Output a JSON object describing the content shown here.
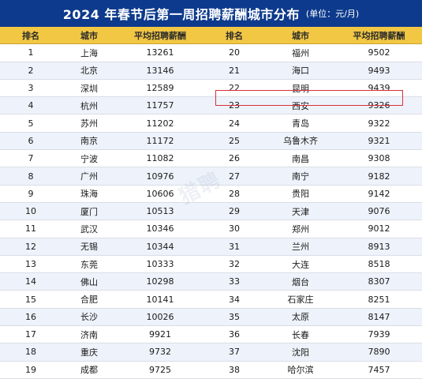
{
  "title": "2024 年春节后第一周招聘薪酬城市分布",
  "unit": "(单位：元/月)",
  "colors": {
    "title_bg": "#0d3a8c",
    "header_bg": "#f2c744",
    "highlight_border": "#d6303a"
  },
  "headers": [
    "排名",
    "城市",
    "平均招聘薪酬",
    "排名",
    "城市",
    "平均招聘薪酬"
  ],
  "rows": [
    [
      "1",
      "上海",
      "13261",
      "20",
      "福州",
      "9502"
    ],
    [
      "2",
      "北京",
      "13146",
      "21",
      "海口",
      "9493"
    ],
    [
      "3",
      "深圳",
      "12589",
      "22",
      "昆明",
      "9439"
    ],
    [
      "4",
      "杭州",
      "11757",
      "23",
      "西安",
      "9326"
    ],
    [
      "5",
      "苏州",
      "11202",
      "24",
      "青岛",
      "9322"
    ],
    [
      "6",
      "南京",
      "11172",
      "25",
      "乌鲁木齐",
      "9321"
    ],
    [
      "7",
      "宁波",
      "11082",
      "26",
      "南昌",
      "9308"
    ],
    [
      "8",
      "广州",
      "10976",
      "27",
      "南宁",
      "9182"
    ],
    [
      "9",
      "珠海",
      "10606",
      "28",
      "贵阳",
      "9142"
    ],
    [
      "10",
      "厦门",
      "10513",
      "29",
      "天津",
      "9076"
    ],
    [
      "11",
      "武汉",
      "10346",
      "30",
      "郑州",
      "9012"
    ],
    [
      "12",
      "无锡",
      "10344",
      "31",
      "兰州",
      "8913"
    ],
    [
      "13",
      "东莞",
      "10333",
      "32",
      "大连",
      "8518"
    ],
    [
      "14",
      "佛山",
      "10298",
      "33",
      "烟台",
      "8307"
    ],
    [
      "15",
      "合肥",
      "10141",
      "34",
      "石家庄",
      "8251"
    ],
    [
      "16",
      "长沙",
      "10026",
      "35",
      "太原",
      "8147"
    ],
    [
      "17",
      "济南",
      "9921",
      "36",
      "长春",
      "7939"
    ],
    [
      "18",
      "重庆",
      "9732",
      "37",
      "沈阳",
      "7890"
    ],
    [
      "19",
      "成都",
      "9725",
      "38",
      "哈尔滨",
      "7457"
    ]
  ],
  "highlighted_row": {
    "rank": "23",
    "city": "西安",
    "salary": "9326"
  },
  "watermark": "猎聘"
}
